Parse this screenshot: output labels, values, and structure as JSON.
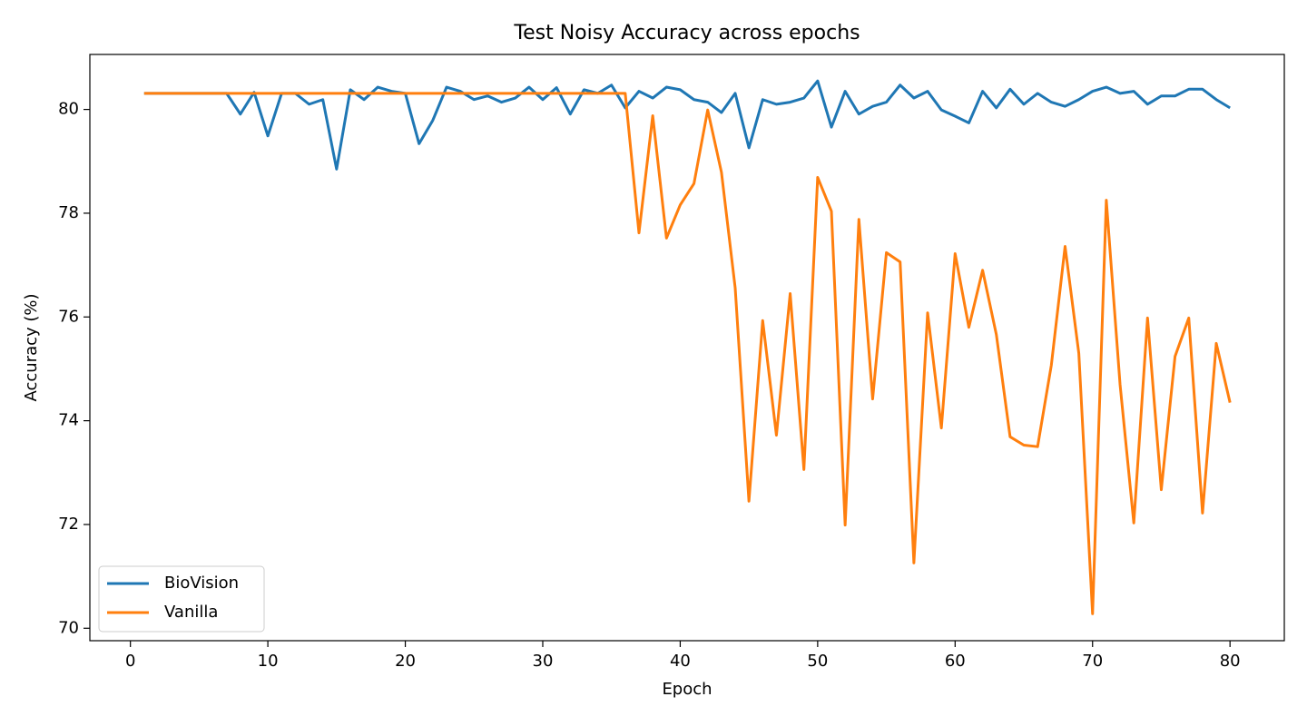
{
  "chart_data": {
    "type": "line",
    "title": "Test Noisy Accuracy across epochs",
    "x_label": "Epoch",
    "y_label": "Accuracy (%)",
    "x": [
      1,
      2,
      3,
      4,
      5,
      6,
      7,
      8,
      9,
      10,
      11,
      12,
      13,
      14,
      15,
      16,
      17,
      18,
      19,
      20,
      21,
      22,
      23,
      24,
      25,
      26,
      27,
      28,
      29,
      30,
      31,
      32,
      33,
      34,
      35,
      36,
      37,
      38,
      39,
      40,
      41,
      42,
      43,
      44,
      45,
      46,
      47,
      48,
      49,
      50,
      51,
      52,
      53,
      54,
      55,
      56,
      57,
      58,
      59,
      60,
      61,
      62,
      63,
      64,
      65,
      66,
      67,
      68,
      69,
      70,
      71,
      72,
      73,
      74,
      75,
      76,
      77,
      78,
      79,
      80
    ],
    "series": [
      {
        "name": "BioVision",
        "color": "#1f77b4",
        "values": [
          80.31,
          80.31,
          80.31,
          80.31,
          80.31,
          80.31,
          80.31,
          79.91,
          80.33,
          79.49,
          80.31,
          80.31,
          80.1,
          80.19,
          78.85,
          80.38,
          80.19,
          80.43,
          80.35,
          80.31,
          79.34,
          79.79,
          80.43,
          80.35,
          80.19,
          80.26,
          80.14,
          80.22,
          80.43,
          80.19,
          80.42,
          79.91,
          80.38,
          80.31,
          80.47,
          80.03,
          80.35,
          80.22,
          80.43,
          80.38,
          80.19,
          80.14,
          79.94,
          80.31,
          79.26,
          80.19,
          80.1,
          80.14,
          80.22,
          80.55,
          79.66,
          80.35,
          79.91,
          80.06,
          80.14,
          80.47,
          80.22,
          80.35,
          79.99,
          79.87,
          79.74,
          80.35,
          80.03,
          80.39,
          80.1,
          80.31,
          80.14,
          80.06,
          80.19,
          80.35,
          80.43,
          80.31,
          80.35,
          80.1,
          80.26,
          80.26,
          80.39,
          80.39,
          80.19,
          80.03
        ]
      },
      {
        "name": "Vanilla",
        "color": "#ff7f0e",
        "values": [
          80.31,
          80.31,
          80.31,
          80.31,
          80.31,
          80.31,
          80.31,
          80.31,
          80.31,
          80.31,
          80.31,
          80.31,
          80.31,
          80.31,
          80.31,
          80.31,
          80.31,
          80.31,
          80.31,
          80.31,
          80.31,
          80.31,
          80.31,
          80.31,
          80.31,
          80.31,
          80.31,
          80.31,
          80.31,
          80.31,
          80.31,
          80.31,
          80.31,
          80.31,
          80.31,
          80.31,
          77.62,
          79.88,
          77.52,
          78.16,
          78.57,
          79.99,
          78.79,
          76.56,
          72.45,
          75.93,
          73.72,
          76.45,
          73.06,
          78.69,
          78.04,
          71.99,
          77.88,
          74.42,
          77.24,
          77.06,
          71.26,
          76.08,
          73.86,
          77.22,
          75.8,
          76.9,
          75.66,
          73.69,
          73.53,
          73.5,
          75.07,
          77.36,
          75.3,
          70.28,
          78.25,
          74.7,
          72.03,
          75.98,
          72.67,
          75.24,
          75.98,
          72.22,
          75.49,
          74.35
        ]
      }
    ],
    "xlim": [
      -2.95,
      83.95
    ],
    "xticks": [
      0,
      10,
      20,
      30,
      40,
      50,
      60,
      70,
      80
    ],
    "ylim": [
      69.76,
      81.06
    ],
    "yticks": [
      70,
      72,
      74,
      76,
      78,
      80
    ],
    "legend": "lower left",
    "grid": false
  }
}
